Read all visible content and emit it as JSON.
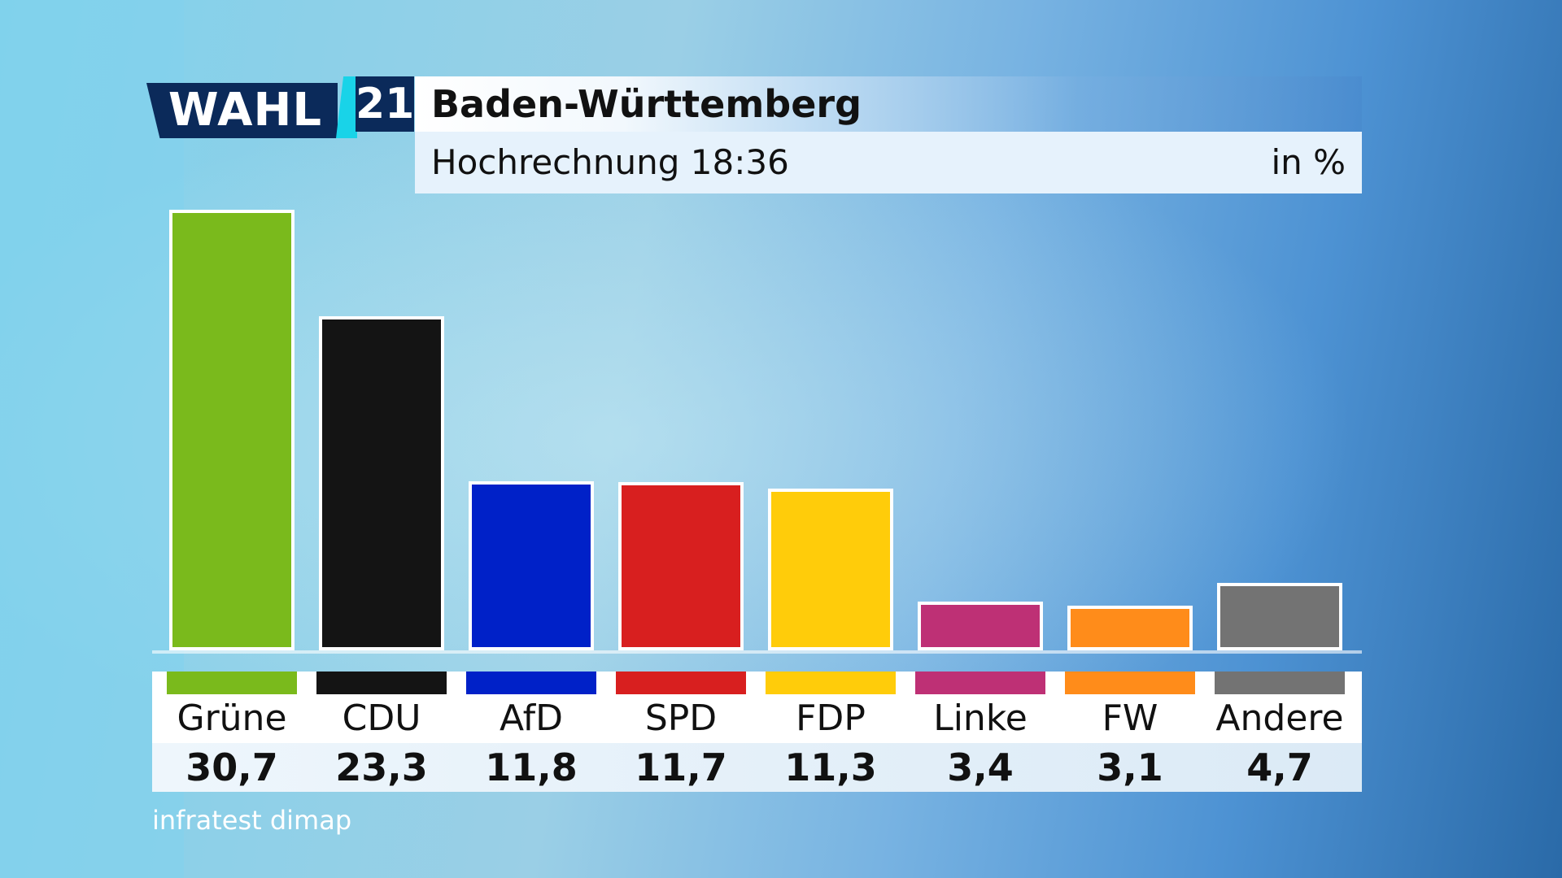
{
  "logo": {
    "word": "WAHL",
    "number": "21"
  },
  "header": {
    "title": "Baden-Württemberg",
    "subtitle": "Hochrechnung 18:36",
    "unit": "in %"
  },
  "source": "infratest dimap",
  "chart_data": {
    "type": "bar",
    "title": "Baden-Württemberg",
    "subtitle": "Hochrechnung 18:36",
    "ylabel": "in %",
    "ylim": [
      0,
      30.7
    ],
    "grid": false,
    "categories": [
      "Grüne",
      "CDU",
      "AfD",
      "SPD",
      "FDP",
      "Linke",
      "FW",
      "Andere"
    ],
    "values": [
      30.7,
      23.3,
      11.8,
      11.7,
      11.3,
      3.4,
      3.1,
      4.7
    ],
    "value_labels": [
      "30,7",
      "23,3",
      "11,8",
      "11,7",
      "11,3",
      "3,4",
      "3,1",
      "4,7"
    ],
    "colors": [
      "#7aba1c",
      "#141414",
      "#0021c8",
      "#d81f1f",
      "#ffcc0a",
      "#be3075",
      "#ff8c1a",
      "#737373"
    ]
  }
}
